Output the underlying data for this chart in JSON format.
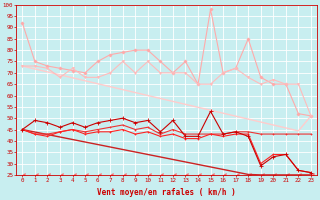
{
  "background_color": "#c8eef0",
  "grid_color": "#ffffff",
  "x_labels": [
    "0",
    "1",
    "2",
    "3",
    "4",
    "5",
    "6",
    "7",
    "8",
    "9",
    "10",
    "11",
    "12",
    "13",
    "14",
    "15",
    "16",
    "17",
    "18",
    "19",
    "20",
    "21",
    "22",
    "23"
  ],
  "xlabel": "Vent moyen/en rafales ( km/h )",
  "ylim": [
    25,
    100
  ],
  "yticks": [
    25,
    30,
    35,
    40,
    45,
    50,
    55,
    60,
    65,
    70,
    75,
    80,
    85,
    90,
    95,
    100
  ],
  "series": [
    {
      "name": "light_pink_jagged_top",
      "color": "#ffaaaa",
      "linewidth": 0.8,
      "marker": "D",
      "markersize": 1.5,
      "zorder": 3,
      "data": [
        92,
        75,
        73,
        72,
        71,
        70,
        75,
        78,
        79,
        80,
        80,
        75,
        70,
        75,
        65,
        98,
        70,
        72,
        85,
        68,
        65,
        65,
        52,
        51
      ]
    },
    {
      "name": "light_pink_jagged_mid",
      "color": "#ffbbbb",
      "linewidth": 0.8,
      "marker": "v",
      "markersize": 1.5,
      "zorder": 3,
      "data": [
        73,
        73,
        72,
        68,
        72,
        68,
        68,
        70,
        75,
        70,
        75,
        70,
        70,
        70,
        65,
        65,
        70,
        72,
        68,
        65,
        67,
        65,
        65,
        51
      ]
    },
    {
      "name": "diagonal_pink_line",
      "color": "#ffcccc",
      "linewidth": 1.0,
      "marker": null,
      "markersize": 0,
      "zorder": 2,
      "data": [
        73,
        71.7,
        70.4,
        69.1,
        67.8,
        66.5,
        65.2,
        63.9,
        62.6,
        61.3,
        60.0,
        58.7,
        57.4,
        56.1,
        54.8,
        53.5,
        52.2,
        50.9,
        49.6,
        48.3,
        47.0,
        45.7,
        44.4,
        51
      ]
    },
    {
      "name": "red_jagged_top",
      "color": "#cc0000",
      "linewidth": 0.8,
      "marker": "+",
      "markersize": 3,
      "zorder": 5,
      "data": [
        45,
        49,
        48,
        46,
        48,
        46,
        48,
        49,
        50,
        48,
        49,
        44,
        49,
        42,
        42,
        53,
        43,
        44,
        42,
        29,
        33,
        34,
        27,
        26
      ]
    },
    {
      "name": "red_flat_mid",
      "color": "#ee3333",
      "linewidth": 0.8,
      "marker": "+",
      "markersize": 2,
      "zorder": 4,
      "data": [
        45,
        43,
        43,
        44,
        45,
        44,
        45,
        46,
        47,
        45,
        46,
        43,
        45,
        43,
        43,
        43,
        43,
        44,
        44,
        43,
        43,
        43,
        43,
        43
      ]
    },
    {
      "name": "red_diagonal_line",
      "color": "#cc2222",
      "linewidth": 1.0,
      "marker": null,
      "markersize": 0,
      "zorder": 3,
      "data": [
        45,
        43.9,
        42.8,
        41.7,
        40.6,
        39.5,
        38.4,
        37.3,
        36.2,
        35.1,
        34.0,
        32.9,
        31.8,
        30.7,
        29.6,
        28.5,
        27.4,
        26.3,
        25.2,
        25,
        25,
        25,
        25,
        25
      ]
    },
    {
      "name": "red_low_jagged",
      "color": "#ff2222",
      "linewidth": 0.8,
      "marker": "+",
      "markersize": 2,
      "zorder": 4,
      "data": [
        45,
        43,
        42,
        44,
        45,
        43,
        44,
        44,
        45,
        43,
        44,
        42,
        43,
        41,
        41,
        43,
        42,
        43,
        43,
        30,
        34,
        34,
        27,
        26
      ]
    },
    {
      "name": "arrow_line",
      "color": "#ff6666",
      "linewidth": 0.7,
      "marker": 4,
      "markersize": 2.5,
      "zorder": 2,
      "data": [
        25,
        25,
        25,
        25,
        25,
        25,
        25,
        25,
        25,
        25,
        25,
        25,
        25,
        25,
        25,
        25,
        25,
        25,
        25,
        25,
        25,
        25,
        25,
        25
      ]
    }
  ]
}
